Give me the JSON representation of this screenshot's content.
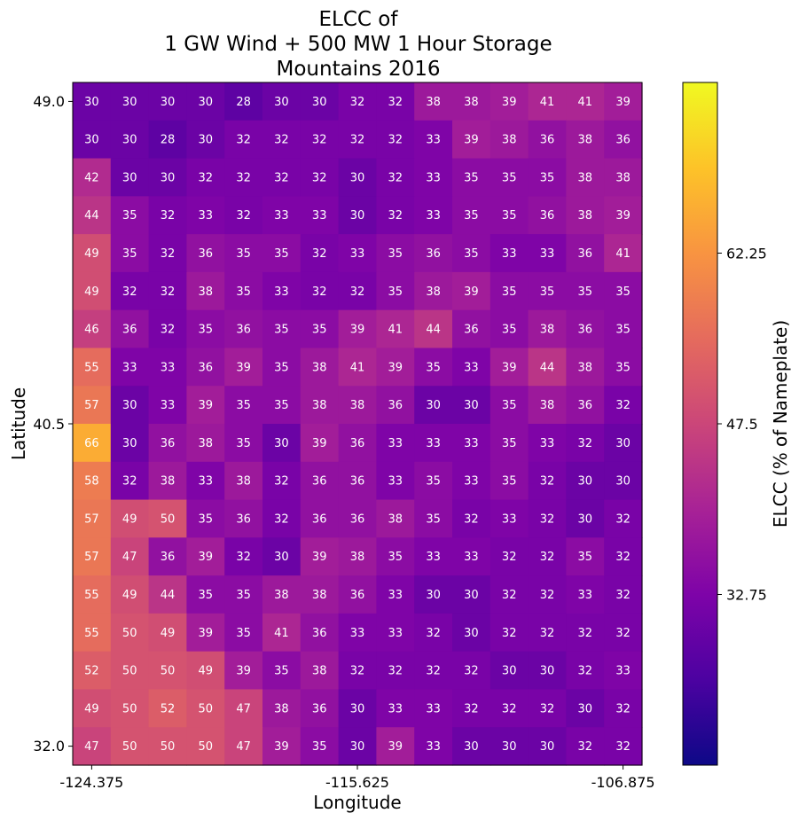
{
  "chart_data": {
    "type": "heatmap",
    "title": [
      "ELCC of",
      "1 GW Wind + 500 MW 1 Hour Storage",
      "Mountains 2016"
    ],
    "xlabel": "Longitude",
    "ylabel": "Latitude",
    "colorbar_label": "ELCC (% of Nameplate)",
    "colormap": "plasma",
    "color_range": [
      18,
      77
    ],
    "x_ticks": [
      "-124.375",
      "-115.625",
      "-106.875"
    ],
    "y_ticks": [
      "49.0",
      "40.5",
      "32.0"
    ],
    "colorbar_ticks": [
      "62.25",
      "47.5",
      "32.75"
    ],
    "colorbar_tick_values": [
      62.25,
      47.5,
      32.75
    ],
    "values": [
      [
        30,
        30,
        30,
        30,
        28,
        30,
        30,
        32,
        32,
        38,
        38,
        39,
        41,
        41,
        39
      ],
      [
        30,
        30,
        28,
        30,
        32,
        32,
        32,
        32,
        32,
        33,
        39,
        38,
        36,
        38,
        36
      ],
      [
        42,
        30,
        30,
        32,
        32,
        32,
        32,
        30,
        32,
        33,
        35,
        35,
        35,
        38,
        38
      ],
      [
        44,
        35,
        32,
        33,
        32,
        33,
        33,
        30,
        32,
        33,
        35,
        35,
        36,
        38,
        39
      ],
      [
        49,
        35,
        32,
        36,
        35,
        35,
        32,
        33,
        35,
        36,
        35,
        33,
        33,
        36,
        41
      ],
      [
        49,
        32,
        32,
        38,
        35,
        33,
        32,
        32,
        35,
        38,
        39,
        35,
        35,
        35,
        35
      ],
      [
        46,
        36,
        32,
        35,
        36,
        35,
        35,
        39,
        41,
        44,
        36,
        35,
        38,
        36,
        35
      ],
      [
        55,
        33,
        33,
        36,
        39,
        35,
        38,
        41,
        39,
        35,
        33,
        39,
        44,
        38,
        35
      ],
      [
        57,
        30,
        33,
        39,
        35,
        35,
        38,
        38,
        36,
        30,
        30,
        35,
        38,
        36,
        32
      ],
      [
        66,
        30,
        36,
        38,
        35,
        30,
        39,
        36,
        33,
        33,
        33,
        35,
        33,
        32,
        30
      ],
      [
        58,
        32,
        38,
        33,
        38,
        32,
        36,
        36,
        33,
        35,
        33,
        35,
        32,
        30,
        30
      ],
      [
        57,
        49,
        50,
        35,
        36,
        32,
        36,
        36,
        38,
        35,
        32,
        33,
        32,
        30,
        32
      ],
      [
        57,
        47,
        36,
        39,
        32,
        30,
        39,
        38,
        35,
        33,
        33,
        32,
        32,
        35,
        32
      ],
      [
        55,
        49,
        44,
        35,
        35,
        38,
        38,
        36,
        33,
        30,
        30,
        32,
        32,
        33,
        32
      ],
      [
        55,
        50,
        49,
        39,
        35,
        41,
        36,
        33,
        33,
        32,
        30,
        32,
        32,
        32,
        32
      ],
      [
        52,
        50,
        50,
        49,
        39,
        35,
        38,
        32,
        32,
        32,
        32,
        30,
        30,
        32,
        33
      ],
      [
        49,
        50,
        52,
        50,
        47,
        38,
        36,
        30,
        33,
        33,
        32,
        32,
        32,
        30,
        32
      ],
      [
        47,
        50,
        50,
        50,
        47,
        39,
        35,
        30,
        39,
        33,
        30,
        30,
        30,
        32,
        32
      ]
    ]
  }
}
